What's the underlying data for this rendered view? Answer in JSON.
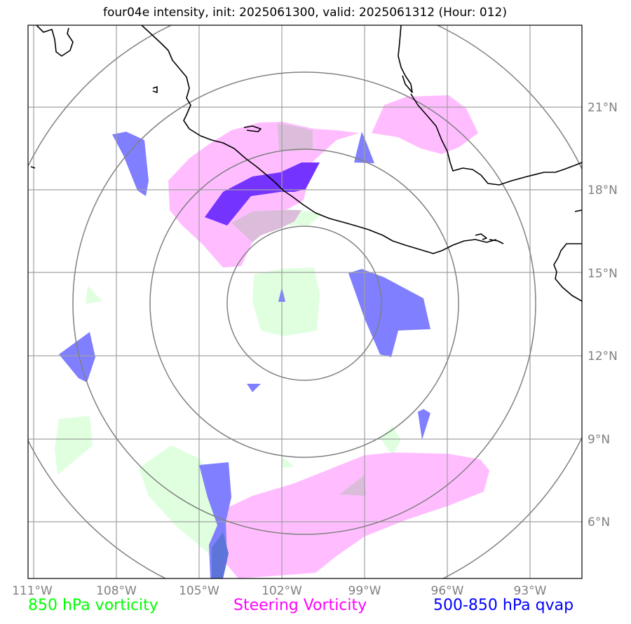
{
  "title": "four04e intensity, init: 2025061300, valid: 2025061312 (Hour: 012)",
  "lat_labels": [
    "21°N",
    "18°N",
    "15°N",
    "12°N",
    "9°N",
    "6°N"
  ],
  "lon_labels": [
    "111°W",
    "108°W",
    "105°W",
    "102°W",
    "99°W",
    "96°W",
    "93°W"
  ],
  "legend": {
    "vorticity_850": {
      "label": "850 hPa vorticity",
      "color": "#00ff00"
    },
    "steering": {
      "label": "Steering Vorticity",
      "color": "#ff00ff"
    },
    "qvap": {
      "label": "500-850 hPa qvap",
      "color": "#0000ff"
    }
  },
  "colors": {
    "fill_850": "#dfffdf",
    "fill_steering": "#ffbdff",
    "fill_qvap": "#7f7fff",
    "overlap_dark": "#7433ff",
    "overlap_light": "#dbbddb",
    "grid": "#a0a0a0",
    "range_rings": "#808080",
    "coastline": "#000000"
  }
}
